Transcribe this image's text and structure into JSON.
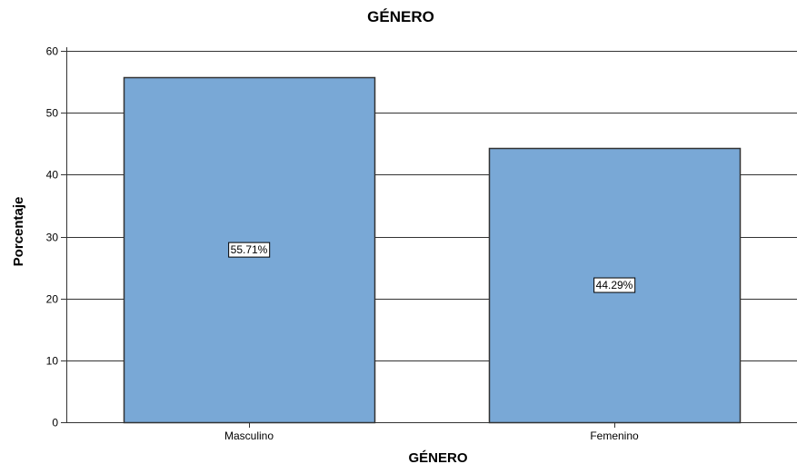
{
  "chart_data": {
    "type": "bar",
    "title": "GÉNERO",
    "xlabel": "GÉNERO",
    "ylabel": "Porcentaje",
    "categories": [
      "Masculino",
      "Femenino"
    ],
    "values": [
      55.71,
      44.29
    ],
    "data_labels": [
      "55.71%",
      "44.29%"
    ],
    "ylim": [
      0,
      60
    ],
    "yticks": [
      0,
      10,
      20,
      30,
      40,
      50,
      60
    ],
    "grid": true,
    "colors": {
      "bar_fill": "#79a8d6",
      "bar_stroke": "#333333",
      "grid": "#333333",
      "axis": "#333333"
    }
  }
}
